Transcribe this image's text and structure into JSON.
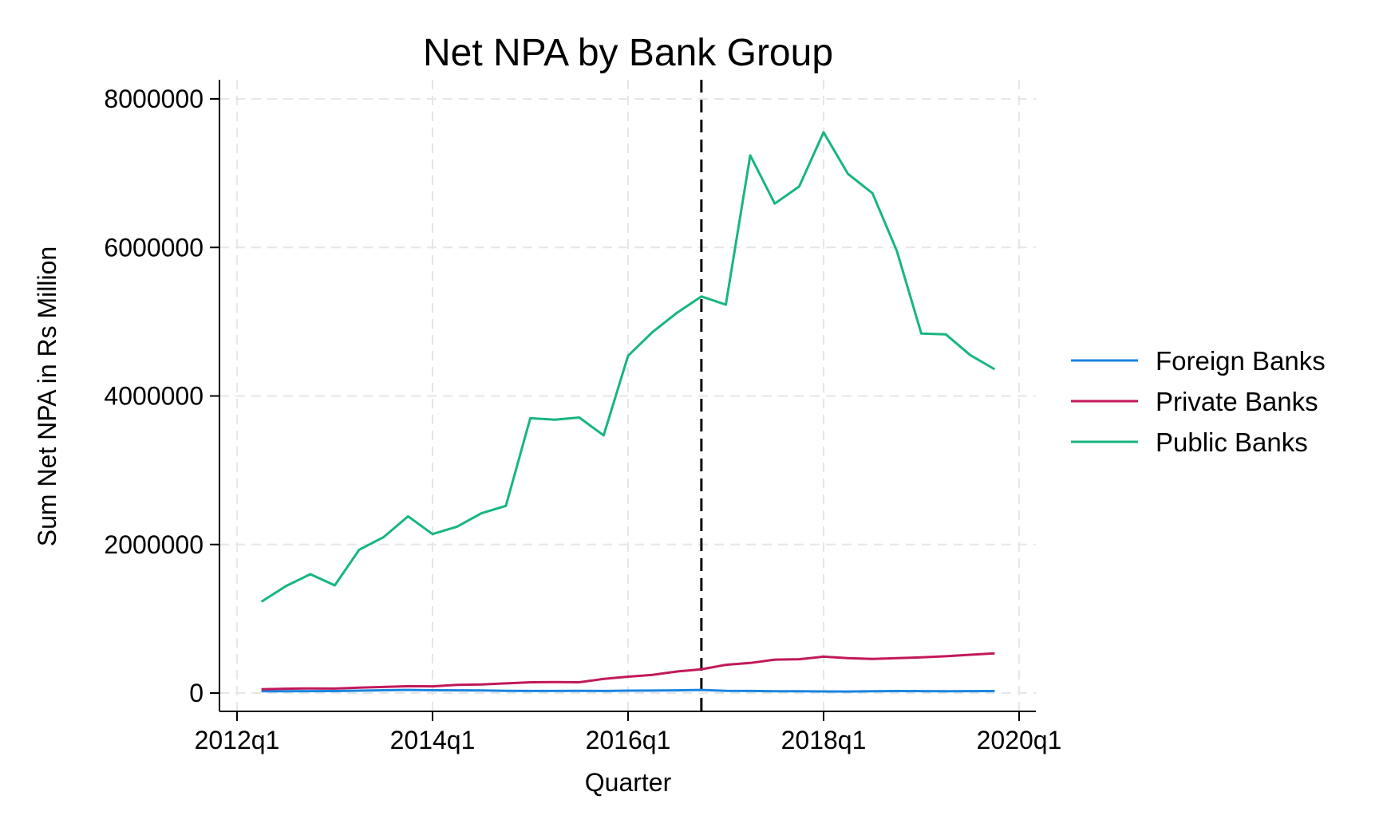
{
  "chart_data": {
    "type": "line",
    "title": "Net NPA by Bank Group",
    "xlabel": "Quarter",
    "ylabel": "Sum Net NPA in Rs Million",
    "xlim": [
      "2012q1",
      "2020q1"
    ],
    "ylim": [
      0,
      8000000
    ],
    "grid": true,
    "legend_position": "right",
    "x_ticks": [
      "2012q1",
      "2014q1",
      "2016q1",
      "2018q1",
      "2020q1"
    ],
    "y_ticks": [
      0,
      2000000,
      4000000,
      6000000,
      8000000
    ],
    "y_tick_labels": [
      "0",
      "2000000",
      "4000000",
      "6000000",
      "8000000"
    ],
    "reference_line_x": "2016q4",
    "x": [
      "2012q2",
      "2012q3",
      "2012q4",
      "2013q1",
      "2013q2",
      "2013q3",
      "2013q4",
      "2014q1",
      "2014q2",
      "2014q3",
      "2014q4",
      "2015q1",
      "2015q2",
      "2015q3",
      "2015q4",
      "2016q1",
      "2016q2",
      "2016q3",
      "2016q4",
      "2017q1",
      "2017q2",
      "2017q3",
      "2017q4",
      "2018q1",
      "2018q2",
      "2018q3",
      "2018q4",
      "2019q1",
      "2019q2",
      "2019q3",
      "2019q4"
    ],
    "series": [
      {
        "name": "Foreign Banks",
        "color": "#1a85e0",
        "values": [
          25000,
          24000,
          26000,
          27000,
          32000,
          38000,
          42000,
          38000,
          36000,
          34000,
          30000,
          28000,
          28000,
          30000,
          28000,
          32000,
          33000,
          36000,
          42000,
          30000,
          28000,
          25000,
          24000,
          22000,
          20000,
          24000,
          27000,
          26000,
          25000,
          26000,
          27000
        ]
      },
      {
        "name": "Private Banks",
        "color": "#c2185b",
        "values": [
          52000,
          58000,
          62000,
          60000,
          72000,
          82000,
          92000,
          90000,
          110000,
          115000,
          130000,
          145000,
          148000,
          145000,
          190000,
          220000,
          245000,
          290000,
          320000,
          380000,
          405000,
          450000,
          455000,
          490000,
          470000,
          460000,
          470000,
          480000,
          495000,
          515000,
          535000
        ]
      },
      {
        "name": "Public Banks",
        "color": "#17b67f",
        "values": [
          1230000,
          1440000,
          1600000,
          1450000,
          1930000,
          2100000,
          2380000,
          2140000,
          2240000,
          2420000,
          2520000,
          3700000,
          3680000,
          3710000,
          3470000,
          4540000,
          4860000,
          5120000,
          5340000,
          5230000,
          7240000,
          6590000,
          6820000,
          7550000,
          6990000,
          6730000,
          5950000,
          4840000,
          4830000,
          4550000,
          4360000
        ]
      }
    ]
  }
}
